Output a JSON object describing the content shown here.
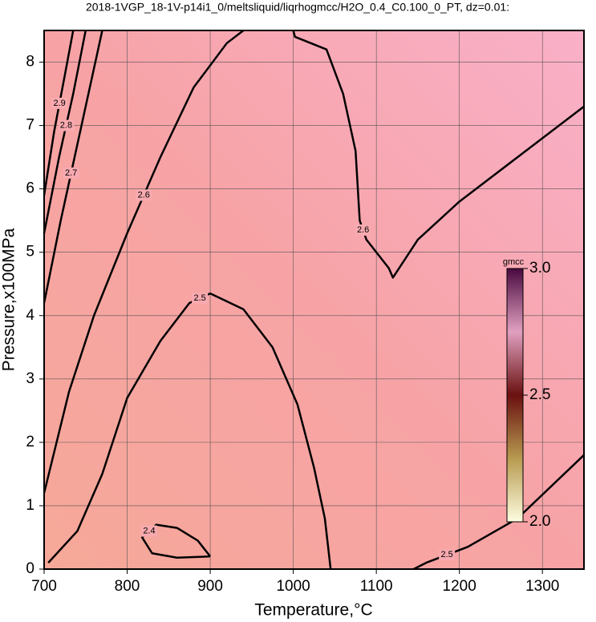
{
  "chart_data": {
    "type": "contour",
    "title": "2018-1VGP_18-1V-p14i1_0/meltsliquid/liqrhogmcc/H2O_0.4_C0.100_0_PT, dz=0.01:",
    "x_label": "Temperature,°C",
    "y_label": "Pressure,x100MPa",
    "xlim": [
      700,
      1350
    ],
    "xticks": [
      700,
      800,
      900,
      1000,
      1100,
      1200,
      1300
    ],
    "ylim": [
      0,
      8.5
    ],
    "yticks": [
      0,
      1,
      2,
      3,
      4,
      5,
      6,
      7,
      8
    ],
    "grid": true,
    "colorbar": {
      "label": "gmcc",
      "lim": [
        2.0,
        3.0
      ],
      "ticks": [
        {
          "value": 2.0,
          "label": "2.0"
        },
        2.5,
        {
          "value": 3.0,
          "label": "3.0"
        }
      ]
    },
    "contours": [
      {
        "level": 2.4,
        "x": [
          900,
          885,
          860,
          835,
          818,
          830,
          860,
          900
        ],
        "y": [
          0.2,
          0.45,
          0.65,
          0.7,
          0.5,
          0.25,
          0.18,
          0.2
        ]
      },
      {
        "level": 2.5,
        "x": [
          705,
          740,
          770,
          800,
          840,
          875,
          900,
          940,
          975,
          1005,
          1025,
          1038,
          1045
        ],
        "y": [
          0.1,
          0.6,
          1.5,
          2.7,
          3.6,
          4.2,
          4.35,
          4.1,
          3.5,
          2.6,
          1.6,
          0.8,
          0
        ]
      },
      {
        "level": 2.5,
        "x": [
          1145,
          1160,
          1210,
          1270,
          1350
        ],
        "y": [
          0,
          0.1,
          0.35,
          0.8,
          1.8
        ]
      },
      {
        "level": 2.6,
        "x": [
          700,
          730,
          760,
          800,
          840,
          880,
          920,
          940
        ],
        "y": [
          1.2,
          2.8,
          4.0,
          5.3,
          6.5,
          7.6,
          8.3,
          8.5
        ]
      },
      {
        "level": 2.6,
        "x": [
          1000,
          1002,
          1040,
          1060,
          1075,
          1080,
          1088,
          1115,
          1120,
          1150,
          1200,
          1270,
          1350
        ],
        "y": [
          8.5,
          8.4,
          8.2,
          7.5,
          6.6,
          5.5,
          5.2,
          4.75,
          4.6,
          5.2,
          5.8,
          6.5,
          7.3
        ]
      },
      {
        "level": 2.7,
        "x": [
          700,
          720,
          745,
          770
        ],
        "y": [
          4.2,
          5.5,
          7.0,
          8.5
        ]
      },
      {
        "level": 2.8,
        "x": [
          700,
          718,
          735,
          750
        ],
        "y": [
          5.3,
          6.5,
          7.5,
          8.5
        ]
      },
      {
        "level": 2.9,
        "x": [
          700,
          712,
          725,
          735
        ],
        "y": [
          5.9,
          6.9,
          7.8,
          8.5
        ]
      }
    ]
  }
}
